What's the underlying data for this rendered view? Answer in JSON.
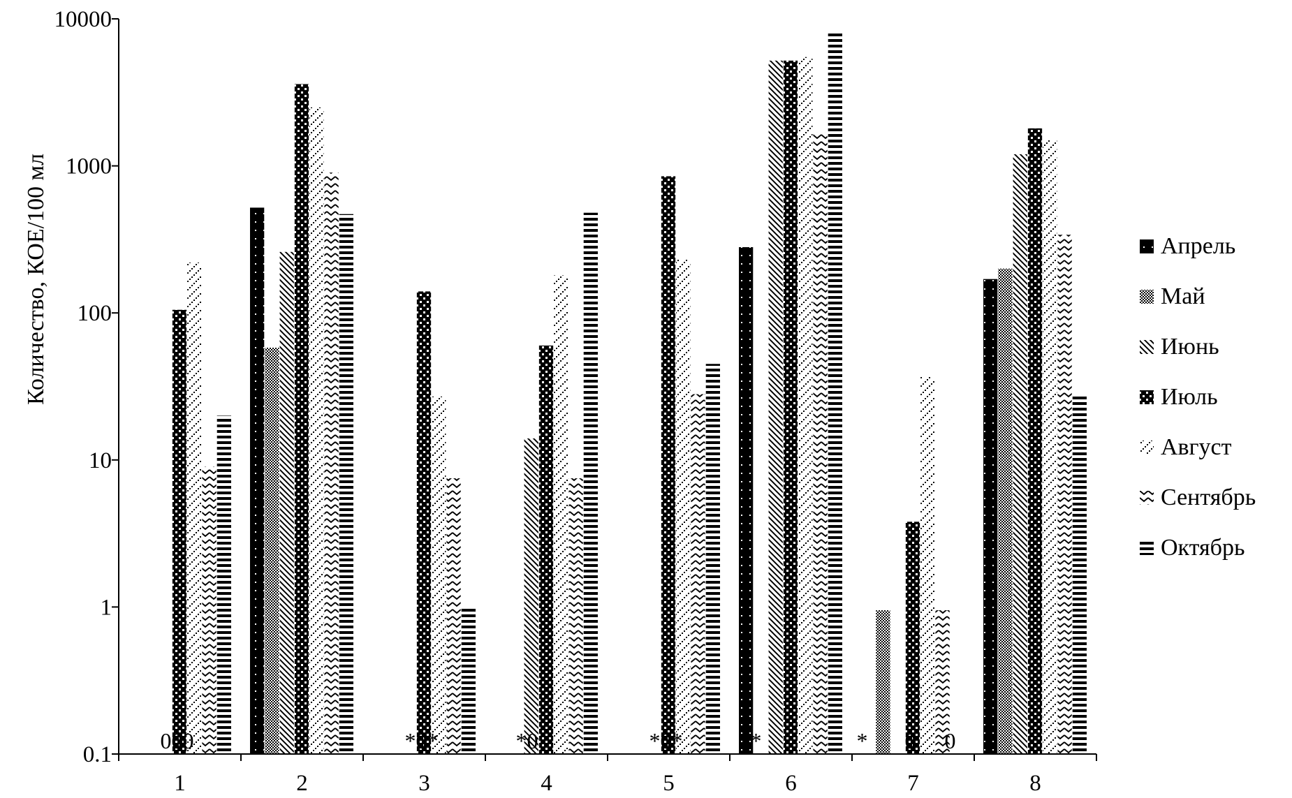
{
  "chart_data": {
    "type": "bar",
    "yscale": "log",
    "ylim": [
      0.1,
      10000
    ],
    "yticks": [
      "10000",
      "1000",
      "100",
      "10",
      "1",
      "0.1"
    ],
    "ylabel": "Количество, КОЕ/100 мл",
    "xlabel": "",
    "title": "",
    "categories": [
      "1",
      "2",
      "3",
      "4",
      "5",
      "6",
      "7",
      "8"
    ],
    "legend_position": "right",
    "series": [
      {
        "name": "Апрель",
        "pattern": "solid",
        "values": [
          0,
          520,
          null,
          null,
          null,
          280,
          null,
          170
        ]
      },
      {
        "name": "Май",
        "pattern": "stipple",
        "values": [
          0,
          58,
          0,
          0,
          0,
          null,
          0.95,
          200
        ]
      },
      {
        "name": "Июнь",
        "pattern": "diag",
        "values": [
          0,
          260,
          null,
          14,
          null,
          5200,
          null,
          1200
        ]
      },
      {
        "name": "Июль",
        "pattern": "checker",
        "values": [
          105,
          3600,
          140,
          60,
          850,
          5200,
          3.8,
          1800
        ]
      },
      {
        "name": "Август",
        "pattern": "dotdiag",
        "values": [
          220,
          2500,
          27,
          180,
          230,
          5500,
          37,
          1500
        ]
      },
      {
        "name": "Сентябрь",
        "pattern": "chevron",
        "values": [
          9,
          900,
          7.5,
          7.5,
          28,
          1700,
          0.95,
          340
        ]
      },
      {
        "name": "Октябрь",
        "pattern": "hstripe",
        "values": [
          20,
          470,
          1,
          480,
          45,
          8000,
          0,
          28
        ]
      }
    ],
    "annotations": [
      {
        "category": "1",
        "text": "000"
      },
      {
        "category": "3",
        "text": "*0*"
      },
      {
        "category": "4",
        "text": "*0"
      },
      {
        "category": "5",
        "text": "*0*"
      },
      {
        "category": "6",
        "text": "*"
      },
      {
        "category": "7",
        "text": "*"
      },
      {
        "category": "7",
        "text": "0"
      },
      {
        "category": "7",
        "text": "0"
      }
    ]
  }
}
